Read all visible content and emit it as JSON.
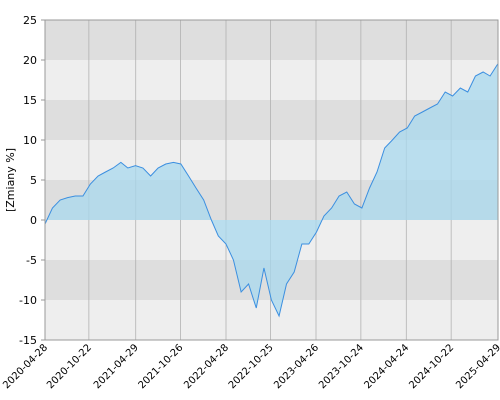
{
  "chart_data": {
    "type": "area",
    "y_label": "[Zmiany %]",
    "x": [
      "2020-04-28",
      "2020-05-28",
      "2020-06-28",
      "2020-07-28",
      "2020-08-28",
      "2020-09-28",
      "2020-10-28",
      "2020-11-28",
      "2020-12-28",
      "2021-01-28",
      "2021-02-28",
      "2021-03-28",
      "2021-04-28",
      "2021-05-28",
      "2021-06-28",
      "2021-07-28",
      "2021-08-28",
      "2021-09-28",
      "2021-10-28",
      "2021-11-28",
      "2021-12-28",
      "2022-01-28",
      "2022-02-28",
      "2022-03-28",
      "2022-04-28",
      "2022-05-28",
      "2022-06-28",
      "2022-07-28",
      "2022-08-28",
      "2022-09-28",
      "2022-10-28",
      "2022-11-28",
      "2022-12-28",
      "2023-01-28",
      "2023-02-28",
      "2023-03-28",
      "2023-04-28",
      "2023-05-28",
      "2023-06-28",
      "2023-07-28",
      "2023-08-28",
      "2023-09-28",
      "2023-10-28",
      "2023-11-28",
      "2023-12-28",
      "2024-01-28",
      "2024-02-28",
      "2024-03-28",
      "2024-04-28",
      "2024-05-28",
      "2024-06-28",
      "2024-07-28",
      "2024-08-28",
      "2024-09-28",
      "2024-10-28",
      "2024-11-28",
      "2024-12-28",
      "2025-01-28",
      "2025-02-28",
      "2025-03-28",
      "2025-04-28"
    ],
    "values": [
      -0.5,
      1.5,
      2.5,
      2.8,
      3,
      3,
      4.5,
      5.5,
      6,
      6.5,
      7.2,
      6.5,
      6.8,
      6.5,
      5.5,
      6.5,
      7,
      7.2,
      7,
      5.5,
      4,
      2.5,
      0,
      -2,
      -3,
      -5,
      -9,
      -8,
      -11,
      -6,
      -10,
      -12,
      -8,
      -6.5,
      -3,
      -3,
      -1.5,
      0.5,
      1.5,
      3,
      3.5,
      2,
      1.5,
      4,
      6,
      9,
      10,
      11,
      11.5,
      13,
      13.5,
      14,
      14.5,
      16,
      15.5,
      16.5,
      16,
      18,
      18.5,
      18,
      19.5
    ],
    "line_color": "#3b8fe0",
    "fill_color": "#a8d8ee",
    "band_colors": [
      "#dedede",
      "#eeeeee"
    ],
    "grid": true,
    "xlim": [
      "2020-04-28",
      "2025-04-29"
    ],
    "xticks": [
      "2020-04-28",
      "2020-10-22",
      "2021-04-29",
      "2021-10-26",
      "2022-04-28",
      "2022-10-25",
      "2023-04-26",
      "2023-10-24",
      "2024-04-24",
      "2024-10-22",
      "2025-04-29"
    ],
    "ylim": [
      -15,
      25
    ],
    "yticks": [
      -15,
      -10,
      -5,
      0,
      5,
      10,
      15,
      20,
      25
    ]
  }
}
